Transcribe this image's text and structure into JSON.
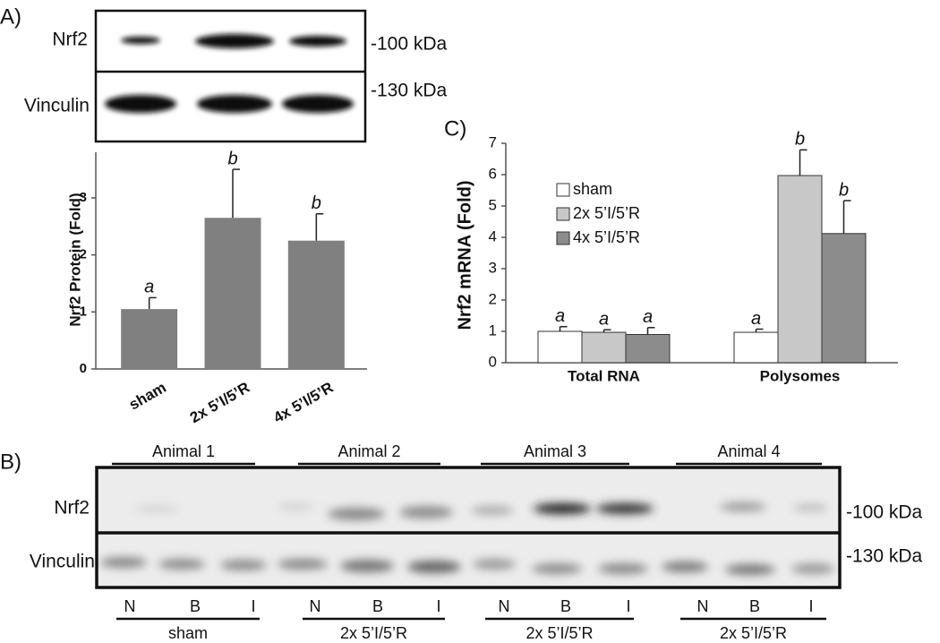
{
  "panels": {
    "a": "A)",
    "b": "B)",
    "c": "C)"
  },
  "blot_a": {
    "rows": [
      "Nrf2",
      "Vinculin"
    ],
    "markers": [
      "-100 kDa",
      "-130 kDa"
    ]
  },
  "chart_data": [
    {
      "type": "bar",
      "ylabel": "Nrf2 Protein (Fold)",
      "categories": [
        "sham",
        "2x 5’I/5’R",
        "4x 5’I/5’R"
      ],
      "values": [
        1.05,
        2.65,
        2.25
      ],
      "errors": [
        0.2,
        0.85,
        0.47
      ],
      "annotations": [
        "a",
        "b",
        "b"
      ],
      "color": "#808080",
      "ylim": [
        0,
        3.8
      ],
      "yticks": [
        0,
        1,
        2,
        3
      ]
    },
    {
      "type": "grouped_bar",
      "ylabel": "Nrf2  mRNA (Fold)",
      "categories": [
        "Total RNA",
        "Polysomes"
      ],
      "legend": "upper left",
      "series": [
        {
          "name": "sham",
          "color": "#ffffff",
          "values": [
            1.0,
            0.97
          ],
          "errors": [
            0.15,
            0.1
          ],
          "annotations": [
            "a",
            "a"
          ]
        },
        {
          "name": "2x 5’I/5’R",
          "color": "#c8c8c8",
          "values": [
            0.97,
            5.97
          ],
          "errors": [
            0.08,
            0.82
          ],
          "annotations": [
            "a",
            "b"
          ]
        },
        {
          "name": "4x 5’I/5’R",
          "color": "#8c8c8c",
          "values": [
            0.9,
            4.12
          ],
          "errors": [
            0.22,
            1.05
          ],
          "annotations": [
            "a",
            "b"
          ]
        }
      ],
      "ylim": [
        0,
        7
      ],
      "yticks": [
        0,
        1,
        2,
        3,
        4,
        5,
        6,
        7
      ]
    }
  ],
  "blot_b": {
    "animals": [
      "Animal 1",
      "Animal 2",
      "Animal 3",
      "Animal 4"
    ],
    "rows": [
      "Nrf2",
      "Vinculin"
    ],
    "markers": [
      "-100 kDa",
      "-130 kDa"
    ],
    "lanes": [
      [
        "N",
        "B",
        "I"
      ],
      [
        "N",
        "B",
        "I"
      ],
      [
        "N",
        "B",
        "I"
      ],
      [
        "N",
        "B",
        "I"
      ]
    ],
    "groups": [
      "sham",
      "2x 5’I/5’R",
      "2x 5’I/5’R",
      "2x 5’I/5’R"
    ]
  }
}
